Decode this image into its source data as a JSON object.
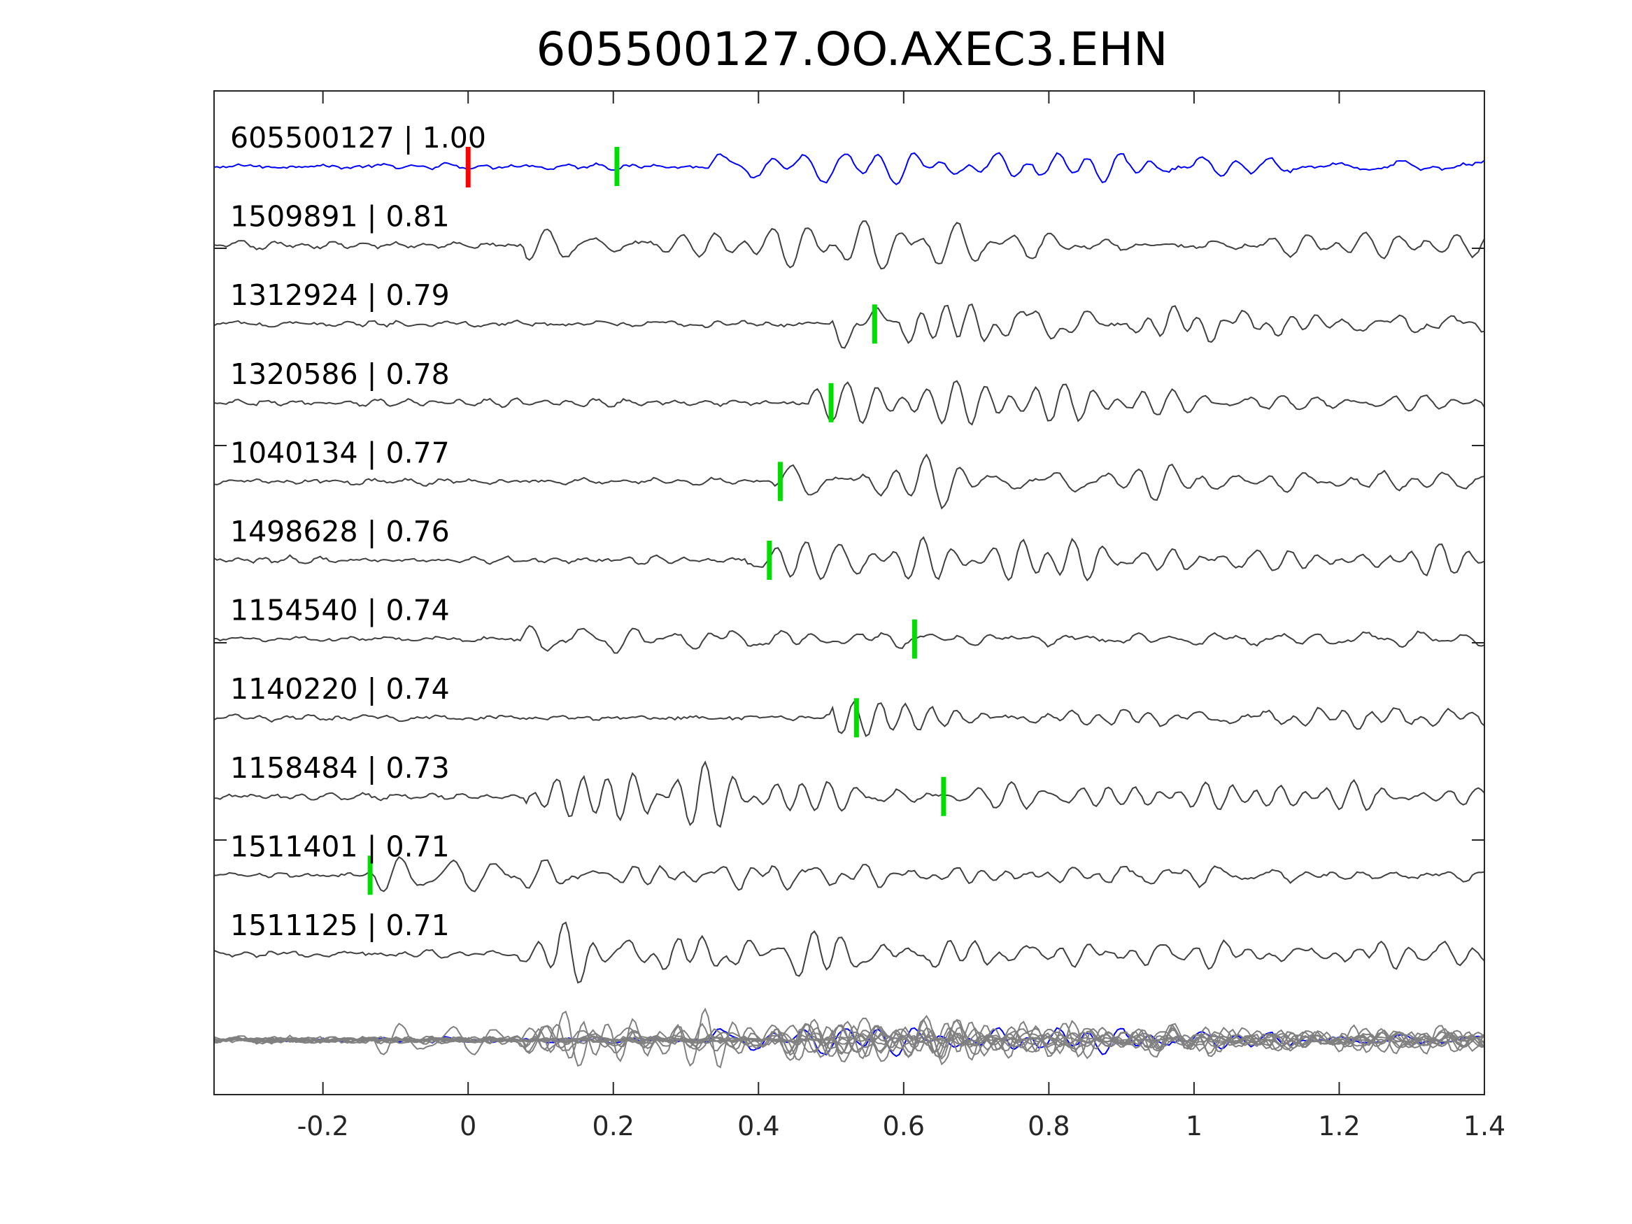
{
  "chart_data": {
    "type": "line",
    "title": "605500127.OO.AXEC3.EHN",
    "xlim": [
      -0.35,
      1.4
    ],
    "x_ticks": [
      "-0.2",
      "0",
      "0.2",
      "0.4",
      "0.6",
      "0.8",
      "1",
      "1.2",
      "1.4"
    ],
    "x_tick_values": [
      -0.2,
      0,
      0.2,
      0.4,
      0.6,
      0.8,
      1,
      1.2,
      1.4
    ],
    "grid": false,
    "colors": {
      "reference": "#0000ff",
      "trace": "#404040",
      "stack": "#808080",
      "reference_pick": "#ff0000",
      "pick": "#00dd00"
    },
    "reference_pick_time": 0.0,
    "series": [
      {
        "name": "605500127 | 1.00",
        "pick": 0.205,
        "onset": 0.33,
        "highlight": true
      },
      {
        "name": "1509891 | 0.81",
        "pick": null,
        "onset": 0.08
      },
      {
        "name": "1312924 | 0.79",
        "pick": 0.56,
        "onset": 0.5
      },
      {
        "name": "1320586 | 0.78",
        "pick": 0.5,
        "onset": 0.47
      },
      {
        "name": "1040134 | 0.77",
        "pick": 0.43,
        "onset": 0.42
      },
      {
        "name": "1498628 | 0.76",
        "pick": 0.415,
        "onset": 0.38
      },
      {
        "name": "1154540 | 0.74",
        "pick": 0.615,
        "onset": 0.07
      },
      {
        "name": "1140220 | 0.74",
        "pick": 0.535,
        "onset": 0.5
      },
      {
        "name": "1158484 | 0.73",
        "pick": 0.655,
        "onset": 0.08
      },
      {
        "name": "1511401 | 0.71",
        "pick": -0.135,
        "onset": -0.15
      },
      {
        "name": "1511125 | 0.71",
        "pick": null,
        "onset": 0.07
      }
    ]
  }
}
